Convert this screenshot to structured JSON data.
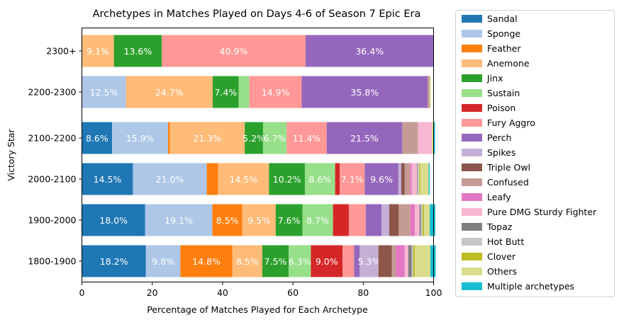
{
  "chart_data": {
    "type": "bar",
    "orientation": "horizontal",
    "stacked": true,
    "title": "Archetypes in Matches Played on Days 4-6 of Season 7 Epic Era",
    "xlabel": "Percentage of Matches Played for Each Archetype",
    "ylabel": "Victory Star",
    "xlim": [
      0,
      100
    ],
    "xticks": [
      "0",
      "20",
      "40",
      "60",
      "80",
      "100"
    ],
    "categories": [
      "1800-1900",
      "1900-2000",
      "2000-2100",
      "2100-2200",
      "2200-2300",
      "2300+"
    ],
    "legend_position": "right, outside plot",
    "label_threshold": 5,
    "series": [
      {
        "name": "Sandal",
        "color": "#1f77b4",
        "values": [
          18.2,
          18.0,
          14.5,
          8.6,
          0,
          0
        ]
      },
      {
        "name": "Sponge",
        "color": "#aec7e8",
        "values": [
          9.8,
          19.1,
          21.0,
          15.9,
          12.5,
          0
        ]
      },
      {
        "name": "Feather",
        "color": "#ff7f0e",
        "values": [
          14.8,
          8.5,
          3.2,
          0.5,
          0,
          0
        ]
      },
      {
        "name": "Anemone",
        "color": "#ffbb78",
        "values": [
          8.5,
          9.5,
          14.5,
          21.3,
          24.7,
          9.1
        ]
      },
      {
        "name": "Jinx",
        "color": "#2ca02c",
        "values": [
          7.5,
          7.6,
          10.2,
          5.2,
          7.4,
          13.6
        ]
      },
      {
        "name": "Sustain",
        "color": "#98df8a",
        "values": [
          6.3,
          8.7,
          8.6,
          6.7,
          3.0,
          0
        ]
      },
      {
        "name": "Poison",
        "color": "#d62728",
        "values": [
          9.0,
          4.5,
          1.3,
          0,
          0,
          0
        ]
      },
      {
        "name": "Fury Aggro",
        "color": "#ff9896",
        "values": [
          3.3,
          4.8,
          7.1,
          11.4,
          14.9,
          40.9
        ]
      },
      {
        "name": "Perch",
        "color": "#9467bd",
        "values": [
          1.6,
          4.5,
          9.6,
          21.5,
          35.8,
          36.4
        ]
      },
      {
        "name": "Spikes",
        "color": "#c5b0d5",
        "values": [
          5.3,
          2.2,
          0.8,
          0,
          0,
          0
        ]
      },
      {
        "name": "Triple Owl",
        "color": "#8c564b",
        "values": [
          3.8,
          2.7,
          1.0,
          0,
          0,
          0
        ]
      },
      {
        "name": "Confused",
        "color": "#c49c94",
        "values": [
          1.2,
          3.3,
          1.5,
          4.5,
          0.6,
          0
        ]
      },
      {
        "name": "Leafy",
        "color": "#e377c2",
        "values": [
          2.5,
          1.3,
          0.5,
          0,
          0,
          0
        ]
      },
      {
        "name": "Pure DMG Sturdy Fighter",
        "color": "#f7b6d2",
        "values": [
          1.0,
          1.3,
          1.5,
          3.9,
          0,
          0
        ]
      },
      {
        "name": "Topaz",
        "color": "#7f7f7f",
        "values": [
          1.0,
          0.4,
          0.2,
          0,
          0,
          0
        ]
      },
      {
        "name": "Hot Butt",
        "color": "#c7c7c7",
        "values": [
          0.4,
          0.5,
          0.4,
          0,
          0,
          0
        ]
      },
      {
        "name": "Clover",
        "color": "#bcbd22",
        "values": [
          0.5,
          0.4,
          0.3,
          0,
          0,
          0
        ]
      },
      {
        "name": "Others",
        "color": "#dbdb8d",
        "values": [
          4.4,
          1.6,
          2.4,
          0.4,
          0.3,
          0
        ]
      },
      {
        "name": "Multiple archetypes",
        "color": "#17becf",
        "values": [
          1.5,
          1.6,
          0.3,
          0.5,
          0,
          0
        ]
      }
    ]
  }
}
